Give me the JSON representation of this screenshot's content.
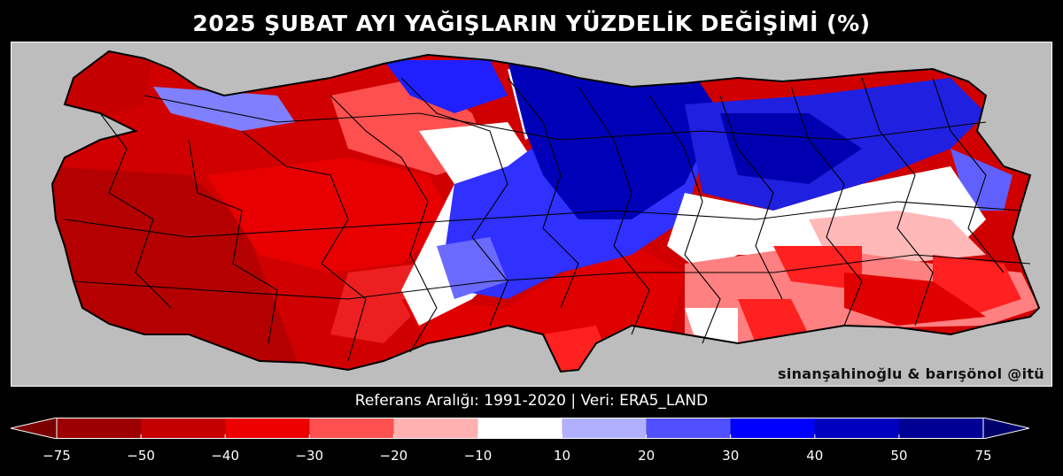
{
  "title": "2025 ŞUBAT AYI YAĞIŞLARIN YÜZDELİK DEĞİŞİMİ (%)",
  "subtitle": "Referans Aralığı: 1991-2020 | Veri: ERA5_LAND",
  "credit": "sinanşahinoğlu & barışönol @itü",
  "colorbar": {
    "ticks": [
      "−75",
      "−50",
      "−40",
      "−30",
      "−20",
      "−10",
      "10",
      "20",
      "30",
      "40",
      "50",
      "75"
    ],
    "colors": [
      "#9c0000",
      "#c40000",
      "#ec0000",
      "#ff5050",
      "#ffb0b0",
      "#ffffff",
      "#b0b0ff",
      "#5050ff",
      "#0000ff",
      "#0000c0",
      "#000094"
    ],
    "under_color": "#7a0000",
    "over_color": "#00006a"
  },
  "map": {
    "land_colors": {
      "deep_red": "#b80000",
      "red": "#e00000",
      "light_red": "#ff6060",
      "pink": "#ffb0b0",
      "white": "#ffffff",
      "light_blue": "#b0b0ff",
      "blue": "#3030ff",
      "deep_blue": "#0000b0"
    },
    "background_color": "#bdbdbd"
  }
}
